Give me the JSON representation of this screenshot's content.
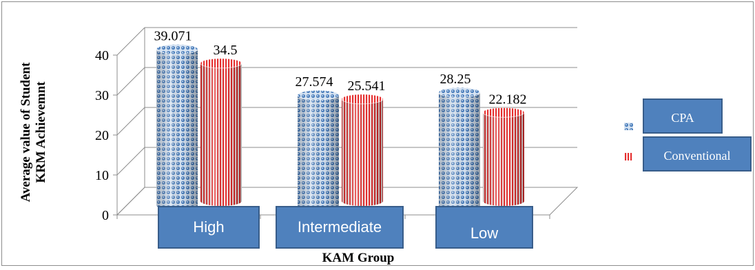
{
  "chart_data": {
    "type": "bar",
    "title": "",
    "xlabel": "KAM Group",
    "ylabel_lines": [
      "Average value of Student",
      "KRM Achievemnt"
    ],
    "categories": [
      "High",
      "Intermediate",
      "Low"
    ],
    "series": [
      {
        "name": "CPA",
        "values": [
          39.071,
          27.574,
          28.25
        ],
        "labels": [
          "39.071",
          "27.574",
          "28.25"
        ]
      },
      {
        "name": "Conventional",
        "values": [
          34.5,
          25.541,
          22.182
        ],
        "labels": [
          "34.5",
          "25.541",
          "22.182"
        ]
      }
    ],
    "yticks": [
      "0",
      "10",
      "20",
      "30",
      "40"
    ],
    "ylim": [
      0,
      40
    ],
    "grid": true,
    "legend_position": "right",
    "style": "3d-cylinder",
    "colors": {
      "cpa": "#4f81bd",
      "conventional": "#e53030",
      "label_box": "#4f81bd",
      "label_box_border": "#385d8a"
    }
  }
}
